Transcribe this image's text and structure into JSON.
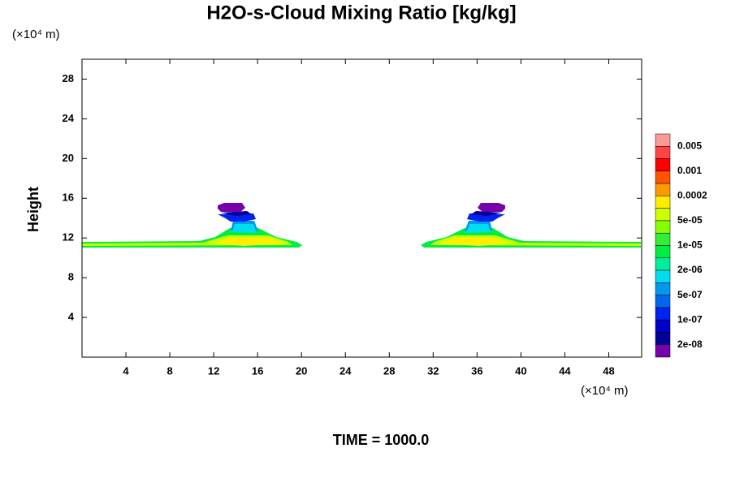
{
  "chart_data": {
    "type": "contour",
    "title": "H2O-s-Cloud Mixing Ratio [kg/kg]",
    "y_label": "Height",
    "y_unit": "(×10⁴ m)",
    "x_unit": "(×10⁴ m)",
    "footer": "TIME = 1000.0",
    "xlim": [
      0,
      51
    ],
    "ylim": [
      0,
      30
    ],
    "xticks": [
      4,
      8,
      12,
      16,
      20,
      24,
      28,
      32,
      36,
      40,
      44,
      48
    ],
    "yticks": [
      4,
      8,
      12,
      16,
      20,
      24,
      28
    ],
    "colorbar": {
      "colors": [
        "#ff9999",
        "#ff4444",
        "#ff0000",
        "#ff5500",
        "#ff9900",
        "#ffee00",
        "#ccff00",
        "#88ff00",
        "#33ee33",
        "#00ee44",
        "#00ee99",
        "#00ddee",
        "#0099ee",
        "#0066ee",
        "#0022ee",
        "#0000cc",
        "#000099",
        "#7700aa"
      ],
      "ticks": [
        0.005,
        0.001,
        0.0002,
        {
          "value": 5e-05,
          "label": "5e-05"
        },
        {
          "value": 1e-05,
          "label": "1e-05"
        },
        {
          "value": 2e-06,
          "label": "2e-06"
        },
        {
          "value": 5e-07,
          "label": "5e-07"
        },
        {
          "value": 1e-07,
          "label": "1e-07"
        },
        {
          "value": 2e-08,
          "label": "2e-08"
        }
      ]
    }
  }
}
